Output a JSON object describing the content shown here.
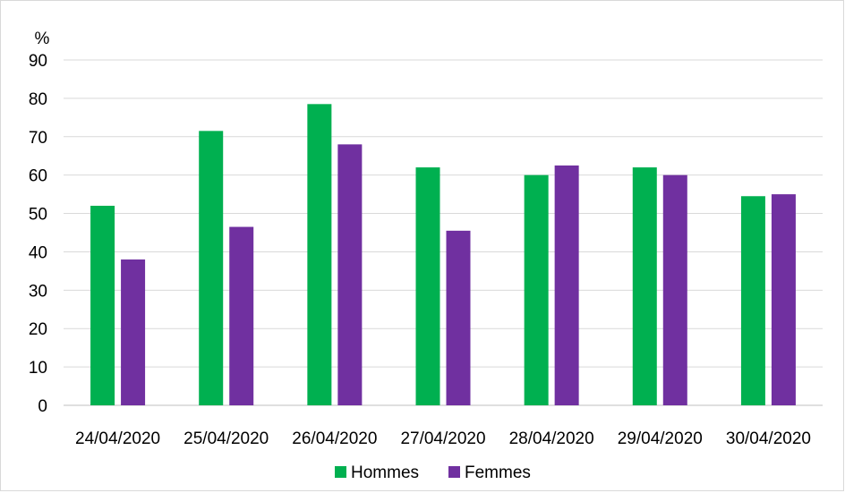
{
  "chart_data": {
    "type": "bar",
    "ylabel": "%",
    "ylim": [
      0,
      90
    ],
    "yticks": [
      0,
      10,
      20,
      30,
      40,
      50,
      60,
      70,
      80,
      90
    ],
    "grid": true,
    "legend_position": "bottom",
    "categories": [
      "24/04/2020",
      "25/04/2020",
      "26/04/2020",
      "27/04/2020",
      "28/04/2020",
      "29/04/2020",
      "30/04/2020"
    ],
    "series": [
      {
        "name": "Hommes",
        "color": "#00b050",
        "values": [
          52,
          71.5,
          78.5,
          62,
          60,
          62,
          54.5
        ]
      },
      {
        "name": "Femmes",
        "color": "#7030a0",
        "values": [
          38,
          46.5,
          68,
          45.5,
          62.5,
          60,
          55
        ]
      }
    ]
  }
}
